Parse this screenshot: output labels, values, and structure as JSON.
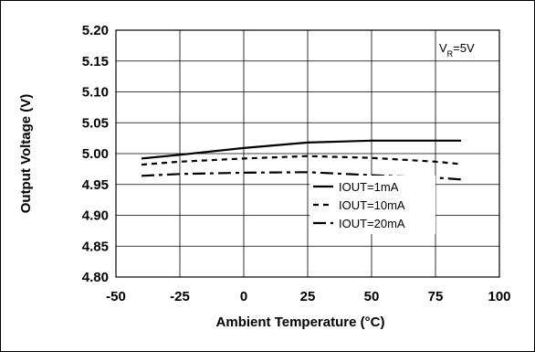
{
  "chart_data": {
    "type": "line",
    "title": "",
    "xlabel": "Ambient Temperature (°C)",
    "ylabel": "Output Voltage (V)",
    "xlim": [
      -50,
      100
    ],
    "ylim": [
      4.8,
      5.2
    ],
    "x_ticks": [
      -50,
      -25,
      0,
      25,
      50,
      75,
      100
    ],
    "y_ticks": [
      4.8,
      4.85,
      4.9,
      4.95,
      5.0,
      5.05,
      5.1,
      5.15,
      5.2
    ],
    "x_tick_labels": [
      "-50",
      "-25",
      "0",
      "25",
      "50",
      "75",
      "100"
    ],
    "y_tick_labels": [
      "4.80",
      "4.85",
      "4.90",
      "4.95",
      "5.00",
      "5.05",
      "5.10",
      "5.15",
      "5.20"
    ],
    "grid": true,
    "legend_position": "bottom-right",
    "annotation": {
      "prefix": "V",
      "subscript": "R",
      "suffix": "=5V"
    },
    "series": [
      {
        "name": "IOUT=1mA",
        "style": "solid",
        "color": "#000000",
        "x": [
          -40,
          -25,
          0,
          25,
          50,
          75,
          85
        ],
        "values": [
          4.992,
          4.998,
          5.009,
          5.018,
          5.021,
          5.021,
          5.021
        ]
      },
      {
        "name": "IOUT=10mA",
        "style": "dashed",
        "color": "#000000",
        "x": [
          -40,
          -25,
          0,
          25,
          50,
          75,
          85
        ],
        "values": [
          4.982,
          4.987,
          4.992,
          4.996,
          4.993,
          4.987,
          4.983
        ]
      },
      {
        "name": "IOUT=20mA",
        "style": "dash-dot",
        "color": "#000000",
        "x": [
          -40,
          -25,
          0,
          25,
          50,
          75,
          85
        ],
        "values": [
          4.964,
          4.967,
          4.969,
          4.97,
          4.965,
          4.961,
          4.958
        ]
      }
    ]
  }
}
